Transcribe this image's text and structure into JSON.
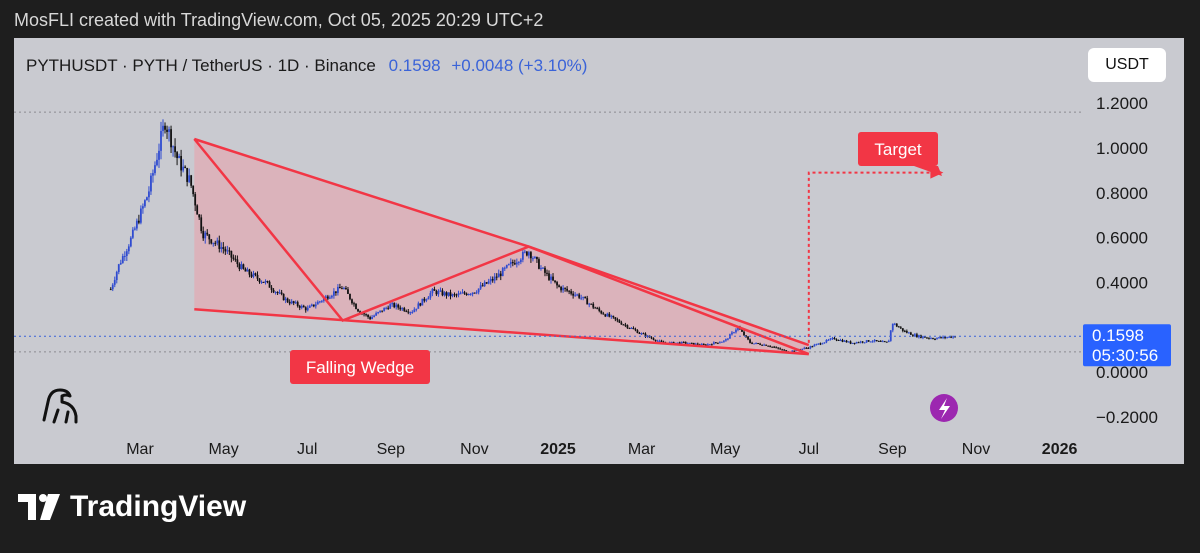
{
  "caption": "MosFLI created with TradingView.com, Oct 05, 2025 20:29 UTC+2",
  "header": {
    "symbol": "PYTHUSDT · PYTH / TetherUS · 1D · Binance",
    "price": "0.1598",
    "change": "+0.0048 (+3.10%)",
    "currency_button": "USDT"
  },
  "brand": {
    "name": "TradingView"
  },
  "colors": {
    "accent": "#2962ff",
    "pattern": "#f23645",
    "fill": "#e8a4ad"
  },
  "chart_data": {
    "type": "candlestick",
    "symbol": "PYTHUSDT",
    "ylim": [
      -0.25,
      1.28
    ],
    "y_ticks": [
      {
        "v": 1.2,
        "label": "1.2000"
      },
      {
        "v": 1.0,
        "label": "1.0000"
      },
      {
        "v": 0.8,
        "label": "0.8000"
      },
      {
        "v": 0.6,
        "label": "0.6000"
      },
      {
        "v": 0.4,
        "label": "0.4000"
      },
      {
        "v": 0.0,
        "label": "0.0000"
      },
      {
        "v": -0.2,
        "label": "−0.2000"
      }
    ],
    "x_ticks": [
      {
        "t": 0.0,
        "label": "Mar"
      },
      {
        "t": 2.0,
        "label": "May"
      },
      {
        "t": 4.0,
        "label": "Jul"
      },
      {
        "t": 6.0,
        "label": "Sep"
      },
      {
        "t": 8.0,
        "label": "Nov"
      },
      {
        "t": 10.0,
        "label": "2025",
        "bold": true
      },
      {
        "t": 12.0,
        "label": "Mar"
      },
      {
        "t": 14.0,
        "label": "May"
      },
      {
        "t": 16.0,
        "label": "Jul"
      },
      {
        "t": 18.0,
        "label": "Sep"
      },
      {
        "t": 20.0,
        "label": "Nov"
      },
      {
        "t": 22.0,
        "label": "2026",
        "bold": true
      }
    ],
    "price_path": [
      [
        -0.7,
        0.37
      ],
      [
        -0.5,
        0.48
      ],
      [
        -0.2,
        0.6
      ],
      [
        0.2,
        0.8
      ],
      [
        0.6,
        1.12
      ],
      [
        0.9,
        0.95
      ],
      [
        1.2,
        0.85
      ],
      [
        1.5,
        0.62
      ],
      [
        2.0,
        0.55
      ],
      [
        2.5,
        0.45
      ],
      [
        3.0,
        0.4
      ],
      [
        3.5,
        0.32
      ],
      [
        4.0,
        0.28
      ],
      [
        4.5,
        0.34
      ],
      [
        4.85,
        0.38
      ],
      [
        5.2,
        0.28
      ],
      [
        5.5,
        0.24
      ],
      [
        6.0,
        0.3
      ],
      [
        6.5,
        0.27
      ],
      [
        7.0,
        0.36
      ],
      [
        7.5,
        0.34
      ],
      [
        8.0,
        0.36
      ],
      [
        8.5,
        0.42
      ],
      [
        9.0,
        0.5
      ],
      [
        9.3,
        0.54
      ],
      [
        9.6,
        0.46
      ],
      [
        10.0,
        0.38
      ],
      [
        10.5,
        0.34
      ],
      [
        11.0,
        0.27
      ],
      [
        11.5,
        0.22
      ],
      [
        12.0,
        0.17
      ],
      [
        12.5,
        0.13
      ],
      [
        13.0,
        0.13
      ],
      [
        13.5,
        0.12
      ],
      [
        14.0,
        0.14
      ],
      [
        14.3,
        0.2
      ],
      [
        14.6,
        0.13
      ],
      [
        15.0,
        0.12
      ],
      [
        15.5,
        0.09
      ],
      [
        16.0,
        0.11
      ],
      [
        16.3,
        0.13
      ],
      [
        16.6,
        0.15
      ],
      [
        17.0,
        0.13
      ],
      [
        17.5,
        0.14
      ],
      [
        17.9,
        0.13
      ],
      [
        18.0,
        0.22
      ],
      [
        18.3,
        0.18
      ],
      [
        18.6,
        0.16
      ],
      [
        19.0,
        0.15
      ],
      [
        19.3,
        0.155
      ],
      [
        19.5,
        0.1598
      ]
    ],
    "last_price": {
      "value": 0.1598,
      "label": "0.1598",
      "countdown": "05:30:56"
    },
    "low_line": 0.09,
    "high_line": 1.16,
    "annotations": {
      "pattern_label": "Falling Wedge",
      "target_label": "Target",
      "wedge_upper": [
        [
          1.3,
          1.04
        ],
        [
          9.3,
          0.56
        ],
        [
          16.0,
          0.12
        ]
      ],
      "wedge_lower": [
        [
          1.3,
          0.28
        ],
        [
          16.0,
          0.08
        ]
      ],
      "zigzag": [
        [
          1.3,
          1.04
        ],
        [
          4.85,
          0.23
        ],
        [
          9.3,
          0.56
        ],
        [
          16.0,
          0.08
        ]
      ],
      "target_line": [
        [
          16.0,
          0.13
        ],
        [
          16.0,
          0.89
        ],
        [
          19.1,
          0.89
        ]
      ],
      "target_value": 0.89
    }
  }
}
